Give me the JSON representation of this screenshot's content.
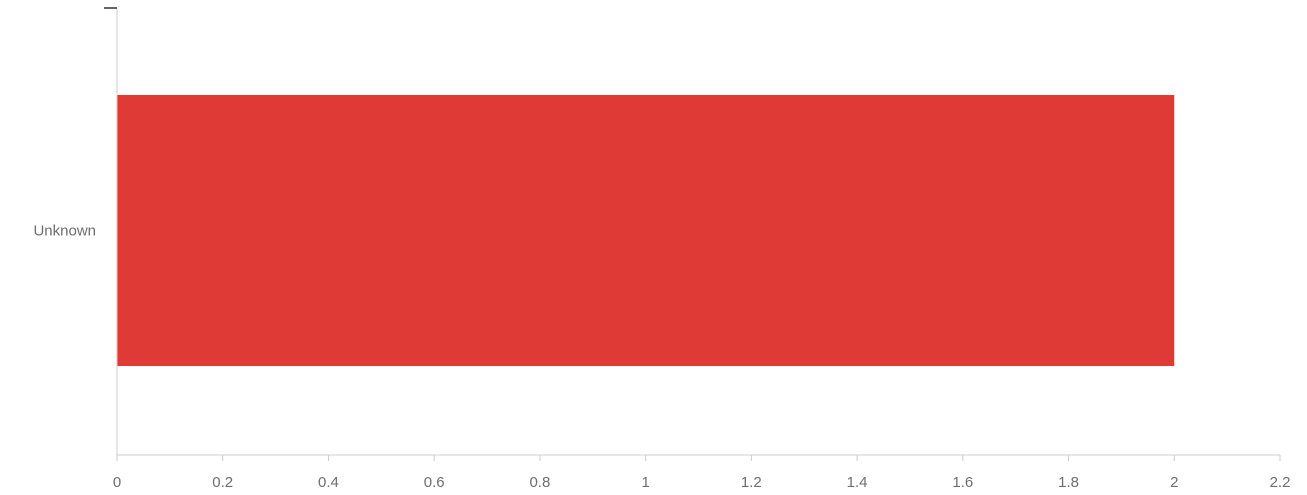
{
  "chart_data": {
    "type": "bar",
    "orientation": "horizontal",
    "categories": [
      "Unknown"
    ],
    "values": [
      2
    ],
    "xlim": [
      0,
      2.2
    ],
    "xticks": [
      0,
      0.2,
      0.4,
      0.6,
      0.8,
      1,
      1.2,
      1.4,
      1.6,
      1.8,
      2,
      2.2
    ],
    "tick_labels": [
      "0",
      "0.2",
      "0.4",
      "0.6",
      "0.8",
      "1",
      "1.2",
      "1.4",
      "1.6",
      "1.8",
      "2",
      "2.2"
    ],
    "title": "",
    "xlabel": "",
    "ylabel": "",
    "grid": false,
    "bar_color": "#e03a36",
    "axis_color": "#cccccc",
    "text_color": "#6e6e6e"
  }
}
